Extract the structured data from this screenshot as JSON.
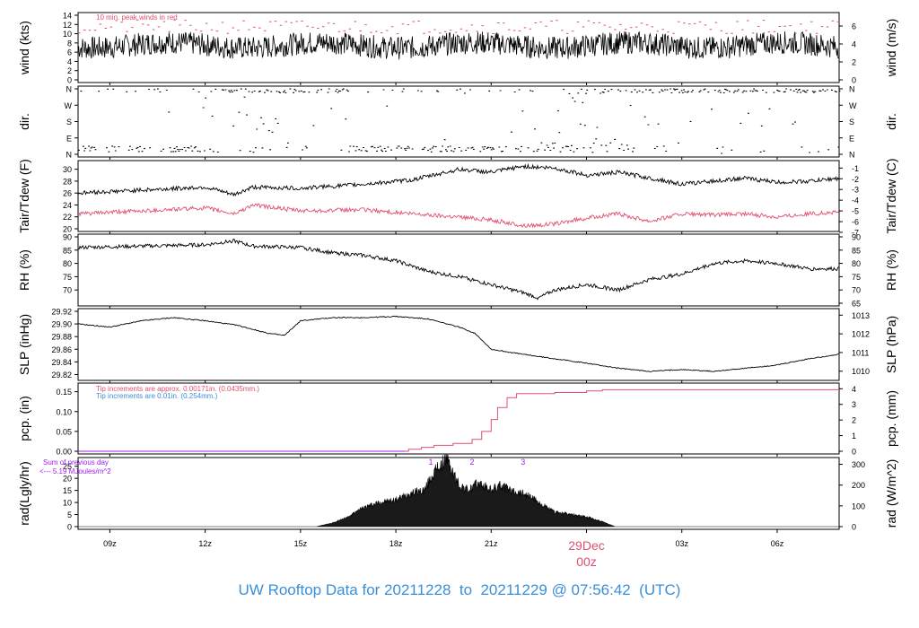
{
  "title": "UW Rooftop Data for 20211228  to  20211229 @ 07:56:42  (UTC)",
  "colors": {
    "trace": "#000000",
    "red": "#e05070",
    "blue": "#3a8fd9",
    "purple": "#a020f0",
    "frame": "#000000"
  },
  "x_axis": {
    "ticks": [
      "09z",
      "12z",
      "15z",
      "18z",
      "21z",
      "00z",
      "03z",
      "06z"
    ],
    "tick_hours": [
      9,
      12,
      15,
      18,
      21,
      24,
      27,
      30
    ],
    "range_hours": [
      8.0,
      31.95
    ],
    "date_label": "29Dec",
    "date_hour_label": "00z",
    "date_hour": 24
  },
  "chart_data": [
    {
      "type": "line",
      "panel": "wind",
      "ylabel": "wind (kts)",
      "ylabel_right": "wind (m/s)",
      "ylim": [
        0,
        14
      ],
      "yticks": [
        "0",
        "2",
        "4",
        "6",
        "8",
        "10",
        "12",
        "14"
      ],
      "yticks_right": [
        "0",
        "2",
        "4",
        "6"
      ],
      "yticks_right_values": [
        0,
        2,
        4,
        6
      ],
      "annotation": "10 min. peak winds in red",
      "mean_kts": 7.5,
      "peak_kts": 11.5
    },
    {
      "type": "scatter",
      "panel": "direction",
      "ylabel": "dir.",
      "ylabel_right": "dir.",
      "yticks": [
        "N",
        "E",
        "S",
        "W",
        "N"
      ],
      "yticks_right": [
        "N",
        "E",
        "S",
        "W",
        "N"
      ]
    },
    {
      "type": "line",
      "panel": "temperature",
      "ylabel": "Tair/Tdew (F)",
      "ylabel_right": "Tair/Tdew (C)",
      "ylim": [
        20,
        31
      ],
      "yticks": [
        "20",
        "22",
        "24",
        "26",
        "28",
        "30"
      ],
      "yticks_right": [
        "-1",
        "-2",
        "-3",
        "-4",
        "-5",
        "-6",
        "-7"
      ],
      "yticks_right_values": [
        -1,
        -2,
        -3,
        -4,
        -5,
        -6,
        -7
      ],
      "series": [
        {
          "color": "#000000",
          "x": [
            8,
            10,
            12,
            12.9,
            13.5,
            15,
            17,
            18.5,
            20,
            21,
            22,
            23,
            24,
            25,
            26,
            27,
            28,
            29,
            30,
            31,
            31.95
          ],
          "values": [
            26.0,
            26.5,
            27.0,
            25.7,
            27.0,
            26.8,
            27.5,
            28.2,
            30.0,
            29.5,
            30.5,
            30.2,
            29.0,
            29.5,
            28.5,
            27.5,
            28.0,
            28.5,
            27.8,
            28.0,
            28.5
          ]
        },
        {
          "color": "#e05070",
          "x": [
            8,
            10,
            12,
            12.9,
            13.5,
            15,
            17,
            18.5,
            20,
            21,
            22,
            23,
            24,
            25,
            26,
            27,
            28,
            29,
            30,
            31,
            31.95
          ],
          "values": [
            22.5,
            23.0,
            23.5,
            22.5,
            24.0,
            23.0,
            23.2,
            22.5,
            22.0,
            21.5,
            20.5,
            20.8,
            21.8,
            22.5,
            21.3,
            22.5,
            22.3,
            22.5,
            22.0,
            22.5,
            22.8
          ]
        }
      ]
    },
    {
      "type": "line",
      "panel": "rh",
      "ylabel": "RH (%)",
      "ylabel_right": "RH (%)",
      "ylim": [
        65,
        90
      ],
      "yticks": [
        "70",
        "75",
        "80",
        "85",
        "90"
      ],
      "yticks_right": [
        "65",
        "70",
        "75",
        "80",
        "85",
        "90"
      ],
      "x": [
        8,
        10,
        12,
        12.9,
        13.5,
        15,
        16,
        17,
        18,
        19,
        20,
        21,
        22,
        22.5,
        23,
        24,
        25,
        26,
        27,
        28,
        29,
        30,
        31,
        31.95
      ],
      "values": [
        86,
        86.5,
        87,
        88.5,
        86.5,
        86,
        84,
        83,
        81,
        77,
        75,
        72,
        69,
        67,
        70,
        72,
        70,
        74,
        76,
        80,
        81,
        80,
        78,
        78
      ]
    },
    {
      "type": "line",
      "panel": "pressure",
      "ylabel": "SLP (inHg)",
      "ylabel_right": "SLP (hPa)",
      "ylim": [
        29.815,
        29.92
      ],
      "yticks": [
        "29.82",
        "29.84",
        "29.86",
        "29.88",
        "29.90",
        "29.92"
      ],
      "yticks_right": [
        "1010",
        "1011",
        "1012",
        "1013"
      ],
      "yticks_right_values": [
        1010,
        1011,
        1012,
        1013
      ],
      "x": [
        8,
        9,
        10,
        11,
        12,
        13,
        14,
        14.5,
        15,
        16,
        17,
        18,
        19,
        20,
        20.5,
        21,
        22,
        23,
        24,
        25,
        26,
        27,
        28,
        29,
        30,
        31,
        31.95
      ],
      "values": [
        29.9,
        29.895,
        29.905,
        29.91,
        29.905,
        29.898,
        29.885,
        29.882,
        29.905,
        29.91,
        29.91,
        29.912,
        29.908,
        29.895,
        29.885,
        29.86,
        29.852,
        29.845,
        29.838,
        29.83,
        29.825,
        29.828,
        29.825,
        29.83,
        29.835,
        29.845,
        29.852
      ]
    },
    {
      "type": "line",
      "panel": "precipitation",
      "ylabel": "pcp. (in)",
      "ylabel_right": "pcp. (mm)",
      "ylim": [
        0,
        0.165
      ],
      "yticks": [
        "0.00",
        "0.05",
        "0.10",
        "0.15"
      ],
      "yticks_right": [
        "0",
        "1",
        "2",
        "3",
        "4"
      ],
      "yticks_right_values": [
        0,
        1,
        2,
        3,
        4
      ],
      "annotations": [
        "Tip increments are approx. 0.00171in. (0.0435mm.)",
        "Tip increments are 0.01in. (0.254mm.)"
      ],
      "x": [
        8,
        18.3,
        18.4,
        18.8,
        19.2,
        19.8,
        20.4,
        20.7,
        21.0,
        21.2,
        21.5,
        21.8,
        23.0,
        24.0,
        24.5,
        31.95
      ],
      "values": [
        0,
        0,
        0.005,
        0.01,
        0.015,
        0.02,
        0.03,
        0.05,
        0.08,
        0.11,
        0.135,
        0.145,
        0.148,
        0.152,
        0.155,
        0.155
      ]
    },
    {
      "type": "area",
      "panel": "radiation",
      "ylabel": "rad(Lgly/hr)",
      "ylabel_right": "rad (W/m^2)",
      "ylim": [
        0,
        27.5
      ],
      "yticks": [
        "0",
        "5",
        "10",
        "15",
        "20",
        "25"
      ],
      "yticks_right": [
        "0",
        "100",
        "200",
        "300"
      ],
      "yticks_right_values": [
        0,
        100,
        200,
        300
      ],
      "annotations": [
        "Sum of previous day",
        "<--- 5.19 MJoules/m^2"
      ],
      "peak_markers": [
        {
          "label": "1",
          "x": 19.1
        },
        {
          "label": "2",
          "x": 20.4
        },
        {
          "label": "3",
          "x": 22.0
        }
      ],
      "x": [
        8,
        15.5,
        16.0,
        16.5,
        17.0,
        17.5,
        18.0,
        18.5,
        18.9,
        19.1,
        19.3,
        19.6,
        19.8,
        20.0,
        20.3,
        20.6,
        21.0,
        21.3,
        21.6,
        22.0,
        22.3,
        22.6,
        23.0,
        23.5,
        24.0,
        24.5,
        24.9,
        31.95
      ],
      "values": [
        0,
        0,
        1.5,
        4,
        8,
        10,
        11,
        14,
        15,
        20,
        24,
        28,
        22,
        17,
        15,
        18,
        15,
        17,
        15,
        14,
        12,
        9,
        6,
        5,
        4,
        2,
        0,
        0
      ]
    }
  ]
}
